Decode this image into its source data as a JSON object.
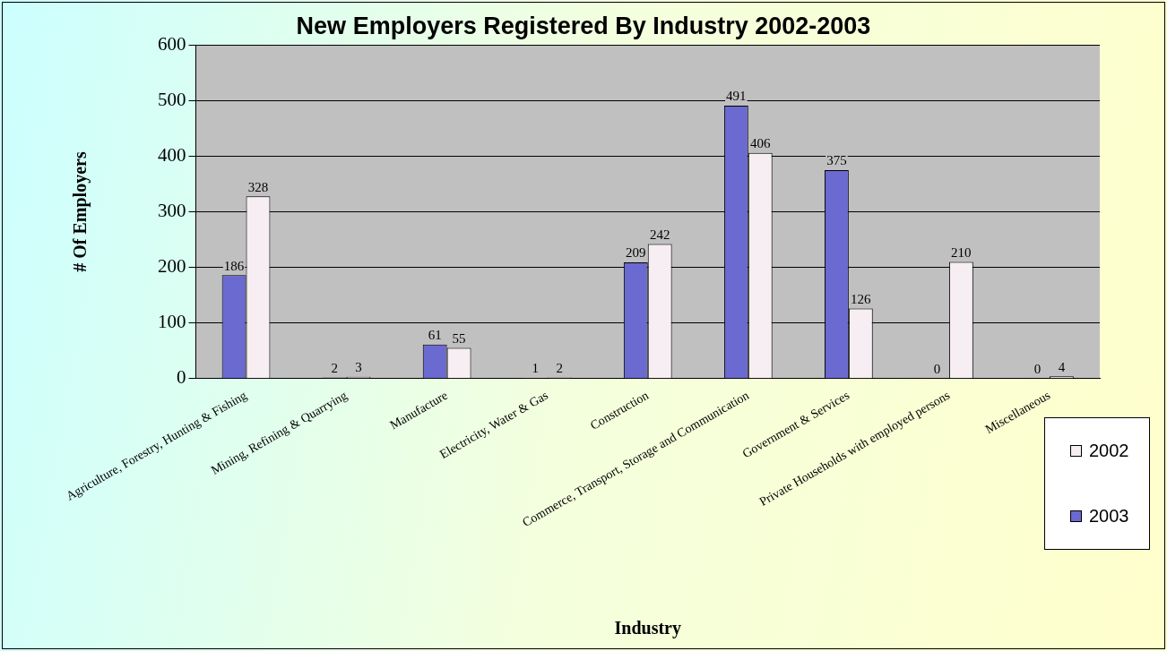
{
  "chart_data": {
    "type": "bar",
    "title": "New Employers Registered By Industry 2002-2003",
    "xlabel": "Industry",
    "ylabel": "# Of Employers",
    "categories": [
      "Agriculture, Forestry, Hunting & Fishing",
      "Mining, Refining & Quarrying",
      "Manufacture",
      "Electricity, Water & Gas",
      "Construction",
      "Commerce, Transport, Storage and Communication",
      "Government & Services",
      "Private Households with employed persons",
      "Miscellaneous"
    ],
    "series": [
      {
        "name": "2003",
        "color": "#6a6ad0",
        "values": [
          186,
          2,
          61,
          1,
          209,
          491,
          375,
          0,
          0
        ]
      },
      {
        "name": "2002",
        "color": "#f6eef2",
        "values": [
          328,
          3,
          55,
          2,
          242,
          406,
          126,
          210,
          4
        ]
      }
    ],
    "ylim": [
      0,
      600
    ],
    "yticks": [
      0,
      100,
      200,
      300,
      400,
      500,
      600
    ],
    "grid": "y",
    "legend": "bottom right",
    "data_labels": true
  }
}
